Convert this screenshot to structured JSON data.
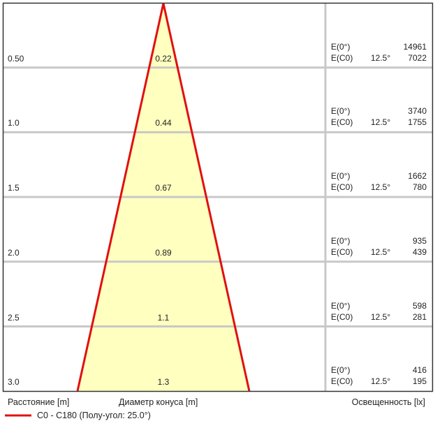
{
  "rows": [
    {
      "distance": "0.50",
      "diameter": "0.22",
      "e0_label": "E(0°)",
      "e0": "14961",
      "ec0_label": "E(C0)",
      "angle": "12.5°",
      "ec0": "7022"
    },
    {
      "distance": "1.0",
      "diameter": "0.44",
      "e0_label": "E(0°)",
      "e0": "3740",
      "ec0_label": "E(C0)",
      "angle": "12.5°",
      "ec0": "1755"
    },
    {
      "distance": "1.5",
      "diameter": "0.67",
      "e0_label": "E(0°)",
      "e0": "1662",
      "ec0_label": "E(C0)",
      "angle": "12.5°",
      "ec0": "780"
    },
    {
      "distance": "2.0",
      "diameter": "0.89",
      "e0_label": "E(0°)",
      "e0": "935",
      "ec0_label": "E(C0)",
      "angle": "12.5°",
      "ec0": "439"
    },
    {
      "distance": "2.5",
      "diameter": "1.1",
      "e0_label": "E(0°)",
      "e0": "598",
      "ec0_label": "E(C0)",
      "angle": "12.5°",
      "ec0": "281"
    },
    {
      "distance": "3.0",
      "diameter": "1.3",
      "e0_label": "E(0°)",
      "e0": "416",
      "ec0_label": "E(C0)",
      "angle": "12.5°",
      "ec0": "195"
    }
  ],
  "footer": {
    "distance_label": "Расстояние [m]",
    "diameter_label": "Диаметр конуса [m]",
    "illuminance_label": "Освещенность [lx]"
  },
  "legend": {
    "label": "C0 - C180 (Полу-угол: 25.0°)",
    "color": "#e01010"
  },
  "colors": {
    "cone_fill": "#ffffc0",
    "cone_stroke": "#e01010",
    "grid": "#c8c8c8",
    "frame": "#333333"
  }
}
